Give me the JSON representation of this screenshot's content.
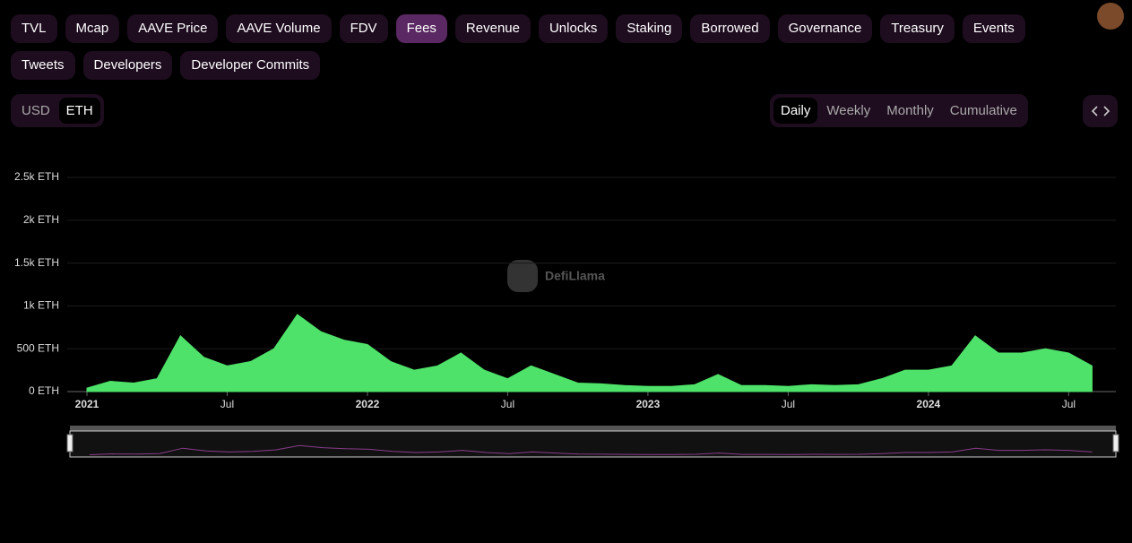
{
  "tabs": [
    "TVL",
    "Mcap",
    "AAVE Price",
    "AAVE Volume",
    "FDV",
    "Fees",
    "Revenue",
    "Unlocks",
    "Staking",
    "Borrowed",
    "Governance",
    "Treasury",
    "Events",
    "Tweets",
    "Developers",
    "Developer Commits"
  ],
  "active_tab": 5,
  "currency_toggle": {
    "options": [
      "USD",
      "ETH"
    ],
    "active": 1
  },
  "period_toggle": {
    "options": [
      "Daily",
      "Weekly",
      "Monthly",
      "Cumulative"
    ],
    "active": 0
  },
  "watermark": "DefiLlama",
  "chart_data": {
    "type": "area",
    "x": [
      "2021-01",
      "2021-02",
      "2021-03",
      "2021-04",
      "2021-05",
      "2021-06",
      "2021-07",
      "2021-08",
      "2021-09",
      "2021-10",
      "2021-11",
      "2021-12",
      "2022-01",
      "2022-02",
      "2022-03",
      "2022-04",
      "2022-05",
      "2022-06",
      "2022-07",
      "2022-08",
      "2022-09",
      "2022-10",
      "2022-11",
      "2022-12",
      "2023-01",
      "2023-02",
      "2023-03",
      "2023-04",
      "2023-05",
      "2023-06",
      "2023-07",
      "2023-08",
      "2023-09",
      "2023-10",
      "2023-11",
      "2023-12",
      "2024-01",
      "2024-02",
      "2024-03",
      "2024-04",
      "2024-05",
      "2024-06",
      "2024-07",
      "2024-08"
    ],
    "series": [
      {
        "color": "#4fe26a",
        "values": [
          40,
          120,
          100,
          150,
          650,
          400,
          300,
          350,
          500,
          900,
          700,
          600,
          550,
          350,
          250,
          300,
          450,
          250,
          150,
          300,
          200,
          100,
          90,
          70,
          60,
          60,
          80,
          200,
          70,
          70,
          60,
          80,
          70,
          80,
          150,
          250,
          250,
          300,
          650,
          450,
          450,
          500,
          450,
          300
        ]
      }
    ],
    "xticks": [
      {
        "value": "2021-01",
        "label": "2021"
      },
      {
        "value": "2021-07",
        "label": "Jul"
      },
      {
        "value": "2022-01",
        "label": "2022"
      },
      {
        "value": "2022-07",
        "label": "Jul"
      },
      {
        "value": "2023-01",
        "label": "2023"
      },
      {
        "value": "2023-07",
        "label": "Jul"
      },
      {
        "value": "2024-01",
        "label": "2024"
      },
      {
        "value": "2024-07",
        "label": "Jul"
      }
    ],
    "ylim": [
      0,
      2500
    ],
    "yticks": [
      {
        "value": 0,
        "label": "0 ETH"
      },
      {
        "value": 500,
        "label": "500 ETH"
      },
      {
        "value": 1000,
        "label": "1k ETH"
      },
      {
        "value": 1500,
        "label": "1.5k ETH"
      },
      {
        "value": 2000,
        "label": "2k ETH"
      },
      {
        "value": 2500,
        "label": "2.5k ETH"
      }
    ],
    "grid": true
  }
}
